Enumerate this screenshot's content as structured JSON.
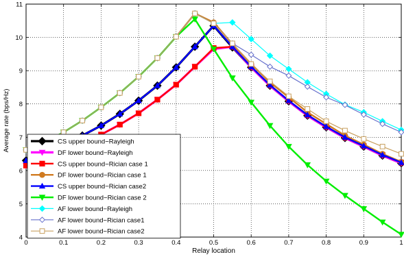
{
  "chart_data": {
    "type": "line",
    "xlabel": "Relay location",
    "ylabel": "Average rate (bps/Hz)",
    "xlim": [
      0,
      1
    ],
    "ylim": [
      4,
      11
    ],
    "xticks": [
      "0",
      "0.1",
      "0.2",
      "0.3",
      "0.4",
      "0.5",
      "0.6",
      "0.7",
      "0.8",
      "0.9",
      "1"
    ],
    "yticks": [
      "4",
      "5",
      "6",
      "7",
      "8",
      "9",
      "10",
      "11"
    ],
    "grid": true,
    "legend_position": "bottom-left",
    "x": [
      0,
      0.05,
      0.1,
      0.15,
      0.2,
      0.25,
      0.3,
      0.35,
      0.4,
      0.45,
      0.5,
      0.55,
      0.6,
      0.65,
      0.7,
      0.75,
      0.8,
      0.85,
      0.9,
      0.95,
      1
    ],
    "series": [
      {
        "name": "CS upper bound−Rayleigh",
        "color": "#000000",
        "marker": "diamond",
        "width": 3.2,
        "size": 5.5,
        "values": [
          6.3,
          6.5,
          6.75,
          7.05,
          7.35,
          7.7,
          8.1,
          8.55,
          9.1,
          9.72,
          10.35,
          9.7,
          9.1,
          8.55,
          8.08,
          7.65,
          7.3,
          6.98,
          6.72,
          6.45,
          6.22
        ]
      },
      {
        "name": "DF lower bound−Rayleigh",
        "color": "#ff00ff",
        "marker": "triangle-down",
        "width": 3.2,
        "size": 4,
        "values": [
          6.15,
          6.45,
          6.6,
          6.8,
          7.08,
          7.38,
          7.72,
          8.13,
          8.58,
          9.12,
          9.65,
          9.72,
          9.1,
          8.55,
          8.08,
          7.65,
          7.3,
          6.98,
          6.72,
          6.45,
          6.22
        ]
      },
      {
        "name": "CS upper bound−Rician case 1",
        "color": "#ff0000",
        "marker": "square",
        "width": 2.4,
        "size": 3.6,
        "values": [
          6.15,
          6.45,
          6.6,
          6.8,
          7.08,
          7.38,
          7.72,
          8.13,
          8.58,
          9.12,
          9.68,
          9.72,
          9.12,
          8.57,
          8.1,
          7.67,
          7.32,
          7.0,
          6.74,
          6.47,
          6.24
        ]
      },
      {
        "name": "DF lower bound−Rician case 1",
        "color": "#d07a20",
        "marker": "circle",
        "width": 2.4,
        "size": 3.8,
        "values": [
          6.62,
          6.85,
          7.15,
          7.5,
          7.9,
          8.33,
          8.82,
          9.38,
          10.02,
          10.72,
          10.45,
          9.8,
          9.2,
          8.65,
          8.2,
          7.75,
          7.4,
          7.05,
          6.78,
          6.5,
          6.26
        ]
      },
      {
        "name": "CS upper bound−Rician case2",
        "color": "#0000ff",
        "marker": "triangle-up",
        "width": 2.4,
        "size": 3.8,
        "values": [
          6.3,
          6.5,
          6.75,
          7.05,
          7.35,
          7.7,
          8.1,
          8.55,
          9.1,
          9.72,
          10.35,
          9.72,
          9.12,
          8.57,
          8.1,
          7.67,
          7.32,
          7.0,
          6.74,
          6.47,
          6.24
        ]
      },
      {
        "name": "DF lower bound−Rician case 2",
        "color": "#00ee00",
        "marker": "triangle-down",
        "width": 2.4,
        "size": 4,
        "values": [
          6.62,
          6.85,
          7.15,
          7.5,
          7.9,
          8.33,
          8.82,
          9.38,
          10.02,
          10.55,
          9.65,
          8.78,
          8.05,
          7.35,
          6.72,
          6.17,
          5.68,
          5.25,
          4.85,
          4.45,
          4.08
        ]
      },
      {
        "name": "AF lower bound−Rayleigh",
        "color": "#00ffff",
        "marker": "diamond",
        "width": 1.2,
        "size": 4,
        "values": [
          6.62,
          6.85,
          7.15,
          7.5,
          7.9,
          8.33,
          8.82,
          9.38,
          10.02,
          10.72,
          10.42,
          10.45,
          9.95,
          9.45,
          9.05,
          8.65,
          8.3,
          7.98,
          7.75,
          7.48,
          7.22
        ]
      },
      {
        "name": "AF lower bound−Rician case1",
        "color": "#6670cc",
        "marker": "diamond",
        "width": 1.2,
        "size": 3.8,
        "values": [
          6.62,
          6.85,
          7.15,
          7.5,
          7.9,
          8.33,
          8.82,
          9.38,
          10.02,
          10.72,
          10.42,
          9.82,
          9.48,
          9.12,
          8.85,
          8.52,
          8.2,
          7.97,
          7.68,
          7.4,
          7.15
        ]
      },
      {
        "name": "AF lower bound−Rician case2",
        "color": "#c8a060",
        "marker": "square",
        "width": 1.2,
        "size": 3.4,
        "values": [
          6.62,
          6.85,
          7.15,
          7.5,
          7.9,
          8.33,
          8.82,
          9.38,
          10.02,
          10.72,
          10.42,
          9.82,
          9.2,
          8.68,
          8.23,
          7.85,
          7.48,
          7.2,
          6.95,
          6.72,
          6.5
        ]
      }
    ]
  }
}
